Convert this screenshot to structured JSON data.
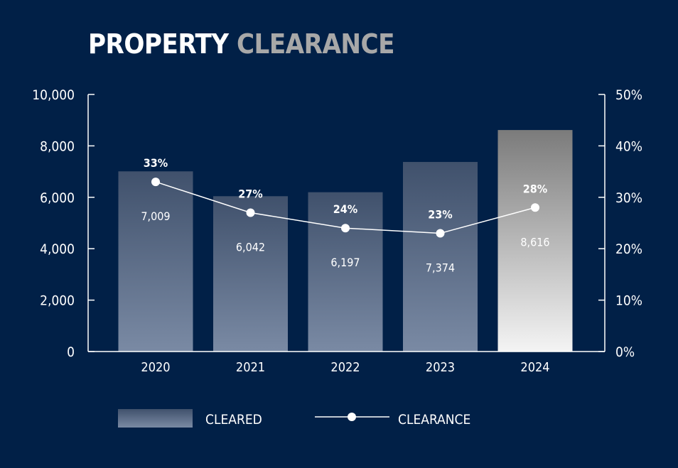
{
  "title": {
    "word1": "PROPERTY",
    "word2": "CLEARANCE"
  },
  "colors": {
    "background": "#012047",
    "bar_top": "#40516c",
    "bar_bottom": "#7a8aa4",
    "highlight_top": "#7b7b7b",
    "highlight_bottom": "#f4f4f4",
    "line": "#ffffff"
  },
  "chart_data": {
    "type": "bar",
    "categories": [
      "2020",
      "2021",
      "2022",
      "2023",
      "2024"
    ],
    "series": [
      {
        "name": "CLEARED",
        "type": "bar",
        "axis": "left",
        "values": [
          7009,
          6042,
          6197,
          7374,
          8616
        ],
        "labels": [
          "7,009",
          "6,042",
          "6,197",
          "7,374",
          "8,616"
        ]
      },
      {
        "name": "CLEARANCE",
        "type": "line",
        "axis": "right",
        "values": [
          33,
          27,
          24,
          23,
          28
        ],
        "labels": [
          "33%",
          "27%",
          "24%",
          "23%",
          "28%"
        ]
      }
    ],
    "highlight_category": "2024",
    "left_axis": {
      "ylim": [
        0,
        10000
      ],
      "ticks": [
        0,
        2000,
        4000,
        6000,
        8000,
        10000
      ],
      "tick_labels": [
        "0",
        "2,000",
        "4,000",
        "6,000",
        "8,000",
        "10,000"
      ]
    },
    "right_axis": {
      "ylim": [
        0,
        50
      ],
      "ticks": [
        0,
        10,
        20,
        30,
        40,
        50
      ],
      "tick_labels": [
        "0%",
        "10%",
        "20%",
        "30%",
        "40%",
        "50%"
      ]
    },
    "legend": {
      "position": "bottom",
      "items": [
        "CLEARED",
        "CLEARANCE"
      ]
    },
    "grid": false
  }
}
